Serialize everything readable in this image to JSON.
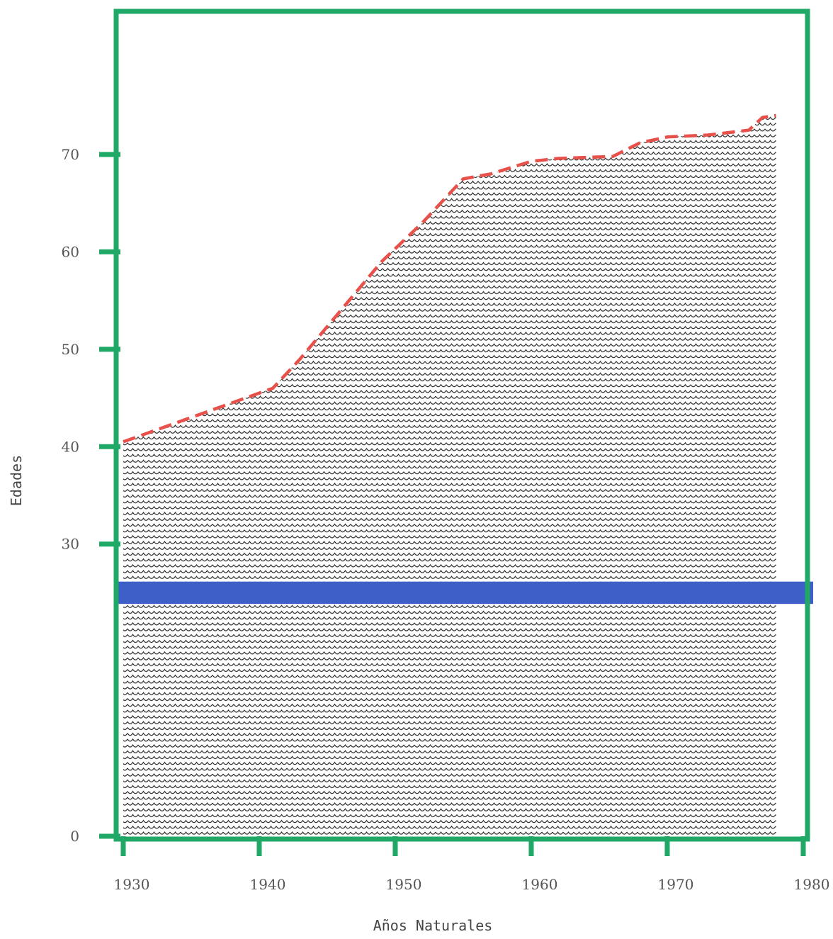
{
  "chart_data": {
    "type": "area",
    "title": "",
    "xlabel": "Años Naturales",
    "ylabel": "Edades",
    "xlim": [
      1930,
      1980
    ],
    "ylim": [
      0,
      80
    ],
    "x_ticks": [
      1930,
      1940,
      1950,
      1960,
      1970,
      1980
    ],
    "y_tick_values": [
      0,
      30,
      40,
      50,
      60,
      70
    ],
    "y_tick_labels": [
      "0",
      "30",
      "40",
      "50",
      "60",
      "70"
    ],
    "grid": false,
    "series": [
      {
        "x": [
          1930,
          1935,
          1938,
          1941,
          1943,
          1946,
          1949,
          1952,
          1955,
          1957,
          1960,
          1962,
          1966,
          1968,
          1970,
          1973,
          1976,
          1977,
          1978
        ],
        "values": [
          40.5,
          43,
          44.5,
          46,
          49,
          54,
          59,
          63,
          67.5,
          68,
          69.3,
          69.6,
          69.8,
          71.2,
          71.8,
          72,
          72.5,
          73.8,
          74
        ],
        "line_color": "#e8504a",
        "fill_pattern": "black-scallop-hatching"
      }
    ],
    "band": {
      "y_from": 24,
      "y_to": 26,
      "color": "#3f5fc8"
    },
    "frame_color": "#1fa866"
  }
}
